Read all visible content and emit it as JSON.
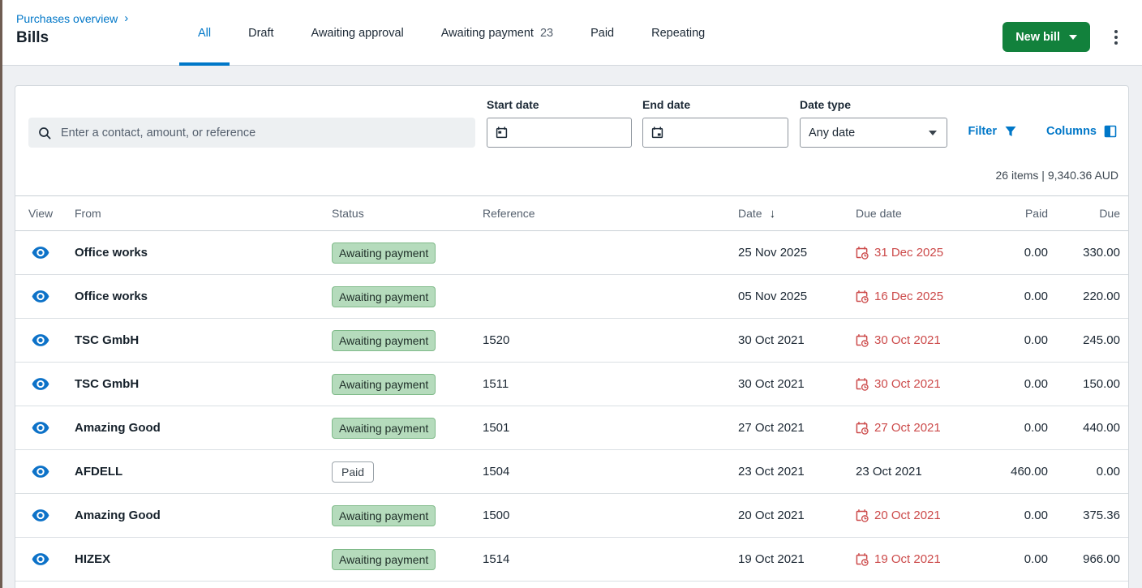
{
  "breadcrumb": {
    "label": "Purchases overview",
    "chevron": "›"
  },
  "page_title": "Bills",
  "tabs": [
    {
      "id": "all",
      "label": "All",
      "count": "",
      "active": true
    },
    {
      "id": "draft",
      "label": "Draft",
      "count": "",
      "active": false
    },
    {
      "id": "awaiting-approval",
      "label": "Awaiting approval",
      "count": "",
      "active": false
    },
    {
      "id": "awaiting-payment",
      "label": "Awaiting payment",
      "count": "23",
      "active": false
    },
    {
      "id": "paid",
      "label": "Paid",
      "count": "",
      "active": false
    },
    {
      "id": "repeating",
      "label": "Repeating",
      "count": "",
      "active": false
    }
  ],
  "actions": {
    "new_bill_label": "New bill"
  },
  "filters": {
    "search_placeholder": "Enter a contact, amount, or reference",
    "start_date_label": "Start date",
    "start_date_value": "",
    "end_date_label": "End date",
    "end_date_value": "",
    "date_type_label": "Date type",
    "date_type_value": "Any date",
    "filter_label": "Filter",
    "columns_label": "Columns"
  },
  "summary_text": "26 items | 9,340.36 AUD",
  "table": {
    "headers": {
      "view": "View",
      "from": "From",
      "status": "Status",
      "reference": "Reference",
      "date": "Date",
      "due_date": "Due date",
      "paid": "Paid",
      "due": "Due"
    },
    "sort_column": "Date",
    "sort_direction": "descending",
    "sort_glyph": "↓",
    "rows": [
      {
        "from": "Office works",
        "status": "Awaiting payment",
        "status_style": "success",
        "reference": "",
        "date": "25 Nov 2025",
        "due_date": "31 Dec 2025",
        "overdue": true,
        "paid": "0.00",
        "due": "330.00"
      },
      {
        "from": "Office works",
        "status": "Awaiting payment",
        "status_style": "success",
        "reference": "",
        "date": "05 Nov 2025",
        "due_date": "16 Dec 2025",
        "overdue": true,
        "paid": "0.00",
        "due": "220.00"
      },
      {
        "from": "TSC GmbH",
        "status": "Awaiting payment",
        "status_style": "success",
        "reference": "1520",
        "date": "30 Oct 2021",
        "due_date": "30 Oct 2021",
        "overdue": true,
        "paid": "0.00",
        "due": "245.00"
      },
      {
        "from": "TSC GmbH",
        "status": "Awaiting payment",
        "status_style": "success",
        "reference": "1511",
        "date": "30 Oct 2021",
        "due_date": "30 Oct 2021",
        "overdue": true,
        "paid": "0.00",
        "due": "150.00"
      },
      {
        "from": "Amazing Good",
        "status": "Awaiting payment",
        "status_style": "success",
        "reference": "1501",
        "date": "27 Oct 2021",
        "due_date": "27 Oct 2021",
        "overdue": true,
        "paid": "0.00",
        "due": "440.00"
      },
      {
        "from": "AFDELL",
        "status": "Paid",
        "status_style": "outline",
        "reference": "1504",
        "date": "23 Oct 2021",
        "due_date": "23 Oct 2021",
        "overdue": false,
        "paid": "460.00",
        "due": "0.00"
      },
      {
        "from": "Amazing Good",
        "status": "Awaiting payment",
        "status_style": "success",
        "reference": "1500",
        "date": "20 Oct 2021",
        "due_date": "20 Oct 2021",
        "overdue": true,
        "paid": "0.00",
        "due": "375.36"
      },
      {
        "from": "HIZEX",
        "status": "Awaiting payment",
        "status_style": "success",
        "reference": "1514",
        "date": "19 Oct 2021",
        "due_date": "19 Oct 2021",
        "overdue": true,
        "paid": "0.00",
        "due": "966.00"
      }
    ]
  },
  "colors": {
    "accent_blue": "#0077C8",
    "button_green": "#12813C",
    "overdue_red": "#CC4A4A",
    "badge_green_bg": "#B5DBBC",
    "badge_green_border": "#7FBA89"
  }
}
